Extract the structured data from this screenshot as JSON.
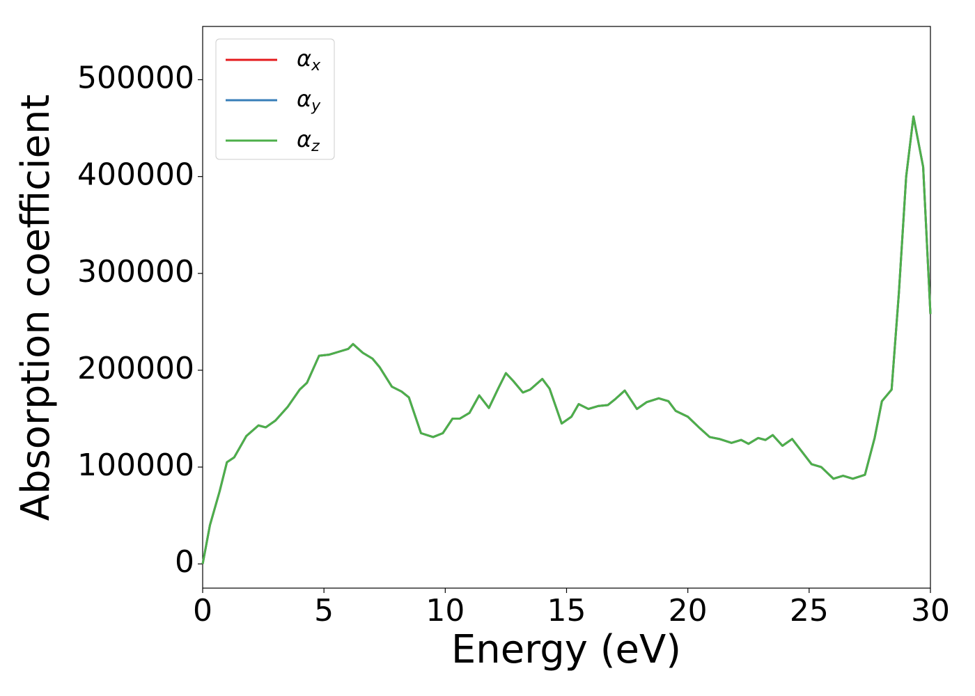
{
  "chart_data": {
    "type": "line",
    "xlabel": "Energy (eV)",
    "ylabel": "Absorption coefficient",
    "x": [
      0,
      0.3,
      0.7,
      1.0,
      1.3,
      1.8,
      2.3,
      2.6,
      3.0,
      3.5,
      4.0,
      4.3,
      4.8,
      5.2,
      5.6,
      6.0,
      6.2,
      6.6,
      7.0,
      7.3,
      7.8,
      8.2,
      8.5,
      9.0,
      9.5,
      9.9,
      10.3,
      10.6,
      11.0,
      11.4,
      11.8,
      12.2,
      12.5,
      12.8,
      13.2,
      13.5,
      14.0,
      14.3,
      14.8,
      15.2,
      15.5,
      15.9,
      16.3,
      16.7,
      17.0,
      17.4,
      17.9,
      18.3,
      18.8,
      19.2,
      19.5,
      20.0,
      20.5,
      20.9,
      21.3,
      21.8,
      22.2,
      22.5,
      22.9,
      23.2,
      23.5,
      23.9,
      24.3,
      24.7,
      25.1,
      25.5,
      26.0,
      26.4,
      26.8,
      27.3,
      27.7,
      28.0,
      28.4,
      28.7,
      29.0,
      29.3,
      29.7,
      30.0
    ],
    "series": [
      {
        "name": "αx",
        "color": "#e41a1c",
        "values": [
          0,
          40000,
          75000,
          105000,
          110000,
          132000,
          143000,
          141000,
          148000,
          162000,
          180000,
          187000,
          215000,
          216000,
          219000,
          222000,
          227000,
          218000,
          212000,
          203000,
          183000,
          178000,
          172000,
          135000,
          131000,
          135000,
          150000,
          150000,
          156000,
          174000,
          161000,
          182000,
          197000,
          189000,
          177000,
          180000,
          191000,
          181000,
          145000,
          152000,
          165000,
          160000,
          163000,
          164000,
          170000,
          179000,
          160000,
          167000,
          171000,
          168000,
          158000,
          152000,
          140000,
          131000,
          129000,
          125000,
          128000,
          124000,
          130000,
          128000,
          133000,
          122000,
          129000,
          116000,
          103000,
          100000,
          88000,
          91000,
          88000,
          92000,
          130000,
          168000,
          180000,
          280000,
          400000,
          462000,
          410000,
          258000
        ]
      },
      {
        "name": "αy",
        "color": "#377eb8",
        "values": [
          0,
          40000,
          75000,
          105000,
          110000,
          132000,
          143000,
          141000,
          148000,
          162000,
          180000,
          187000,
          215000,
          216000,
          219000,
          222000,
          227000,
          218000,
          212000,
          203000,
          183000,
          178000,
          172000,
          135000,
          131000,
          135000,
          150000,
          150000,
          156000,
          174000,
          161000,
          182000,
          197000,
          189000,
          177000,
          180000,
          191000,
          181000,
          145000,
          152000,
          165000,
          160000,
          163000,
          164000,
          170000,
          179000,
          160000,
          167000,
          171000,
          168000,
          158000,
          152000,
          140000,
          131000,
          129000,
          125000,
          128000,
          124000,
          130000,
          128000,
          133000,
          122000,
          129000,
          116000,
          103000,
          100000,
          88000,
          91000,
          88000,
          92000,
          130000,
          168000,
          180000,
          280000,
          400000,
          462000,
          410000,
          258000
        ]
      },
      {
        "name": "αz",
        "color": "#4daf4a",
        "values": [
          0,
          40000,
          75000,
          105000,
          110000,
          132000,
          143000,
          141000,
          148000,
          162000,
          180000,
          187000,
          215000,
          216000,
          219000,
          222000,
          227000,
          218000,
          212000,
          203000,
          183000,
          178000,
          172000,
          135000,
          131000,
          135000,
          150000,
          150000,
          156000,
          174000,
          161000,
          182000,
          197000,
          189000,
          177000,
          180000,
          191000,
          181000,
          145000,
          152000,
          165000,
          160000,
          163000,
          164000,
          170000,
          179000,
          160000,
          167000,
          171000,
          168000,
          158000,
          152000,
          140000,
          131000,
          129000,
          125000,
          128000,
          124000,
          130000,
          128000,
          133000,
          122000,
          129000,
          116000,
          103000,
          100000,
          88000,
          91000,
          88000,
          92000,
          130000,
          168000,
          180000,
          280000,
          400000,
          462000,
          410000,
          258000
        ]
      }
    ],
    "xlim": [
      0,
      30
    ],
    "xticks": [
      0,
      5,
      10,
      15,
      20,
      25,
      30
    ],
    "ylim": [
      -25000,
      555000
    ],
    "yticks": [
      0,
      100000,
      200000,
      300000,
      400000,
      500000
    ],
    "grid": false,
    "legend": "upper left"
  }
}
